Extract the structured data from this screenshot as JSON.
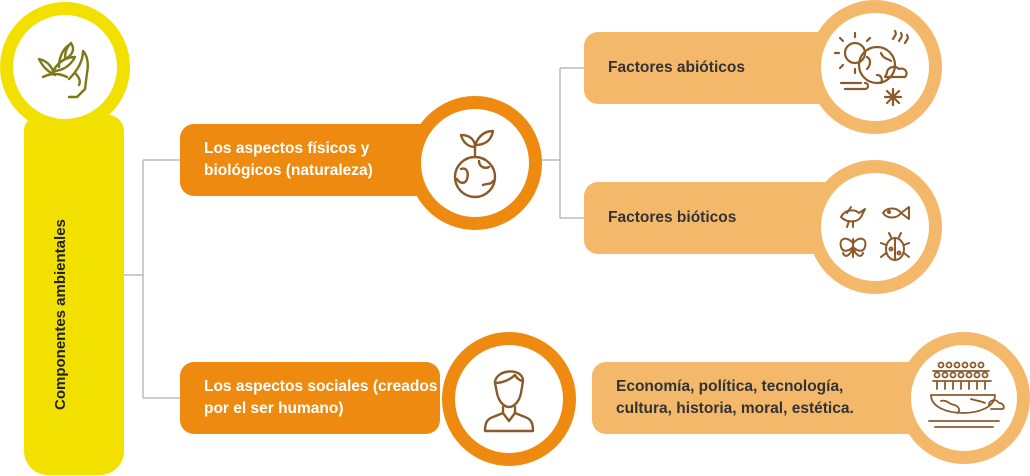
{
  "root": {
    "label": "Componentes ambientales",
    "icon": "hands-plant-icon"
  },
  "branches": [
    {
      "label": "Los aspectos físicos y biológicos (naturaleza)",
      "icon": "plant-globe-icon",
      "children": [
        {
          "label": "Factores abióticos",
          "icon": "weather-globe-icon"
        },
        {
          "label": "Factores bióticos",
          "icon": "animals-icon"
        }
      ]
    },
    {
      "label": "Los aspectos sociales (creados por el ser humano)",
      "icon": "person-icon",
      "children": [
        {
          "label": "Economía, política, tecnología, cultura, historia, moral, estética.",
          "icon": "crowd-world-icon"
        }
      ]
    }
  ],
  "colors": {
    "root": "#f2e100",
    "dark": "#ee8a0f",
    "light": "#f4b86b",
    "icon": "#8a5a2a",
    "rootIcon": "#7a7a18"
  }
}
